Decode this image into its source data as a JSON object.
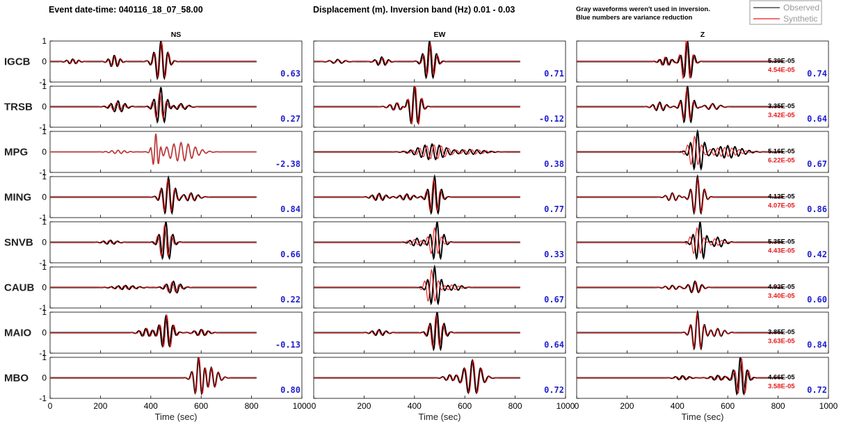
{
  "header": {
    "event": "Event date-time: 040116_18_07_58.00",
    "band": "Displacement (m).  Inversion band (Hz)  0.01 - 0.03",
    "note1": "Gray waveforms weren't used in inversion.",
    "note2": "Blue numbers are variance reduction"
  },
  "legend": {
    "observed": "Observed",
    "synthetic": "Synthetic",
    "placement": "top-right"
  },
  "chart_data": {
    "type": "line",
    "columns": [
      "NS",
      "EW",
      "Z"
    ],
    "stations": [
      "IGCB",
      "TRSB",
      "MPG",
      "MING",
      "SNVB",
      "CAUB",
      "MAIO",
      "MBO"
    ],
    "xlabel": "Time (sec)",
    "xlim": [
      0,
      1000
    ],
    "xticks": [
      "0",
      "200",
      "400",
      "600",
      "800",
      "1000"
    ],
    "ylim": [
      -1,
      1
    ],
    "yticks": [
      "-1",
      "0",
      "1"
    ],
    "grid": false,
    "colors": {
      "observed": "#000000",
      "synthetic": "#e41a1c",
      "unused": "#8c8c8c",
      "vr": "#1f1fcf",
      "amp_syn": "#e41a1c",
      "amp_obs": "#000000"
    },
    "variance_reduction": [
      [
        "0.63",
        "0.71",
        "0.74"
      ],
      [
        "0.27",
        "-0.12",
        "0.64"
      ],
      [
        "-2.38",
        "0.38",
        "0.67"
      ],
      [
        "0.84",
        "0.77",
        "0.86"
      ],
      [
        "0.66",
        "0.33",
        "0.42"
      ],
      [
        "0.22",
        "0.67",
        "0.60"
      ],
      [
        "-0.13",
        "0.64",
        "0.84"
      ],
      [
        "0.80",
        "0.72",
        "0.72"
      ]
    ],
    "max_amplitude_observed": [
      "5.39E-05",
      "3.35E-05",
      "5.16E-05",
      "4.12E-05",
      "5.35E-05",
      "4.92E-05",
      "3.85E-05",
      "4.66E-05"
    ],
    "max_amplitude_synthetic": [
      "4.54E-05",
      "3.42E-05",
      "6.22E-05",
      "4.07E-05",
      "4.43E-05",
      "3.40E-05",
      "3.63E-05",
      "3.58E-05"
    ],
    "unused_components": [
      [
        2,
        0
      ]
    ],
    "waveforms": [
      [
        {
          "packets": [
            [
              440,
              1.0,
              22,
              0.035,
              0
            ],
            [
              255,
              0.3,
              18,
              0.04,
              0
            ],
            [
              90,
              0.12,
              20,
              0.04,
              0
            ]
          ],
          "syn_amp": 0.95,
          "syn_shift": 3
        },
        {
          "packets": [
            [
              460,
              1.0,
              20,
              0.035,
              0
            ],
            [
              270,
              0.22,
              20,
              0.035,
              0
            ],
            [
              95,
              0.1,
              25,
              0.03,
              0
            ]
          ],
          "syn_amp": 0.85,
          "syn_shift": 4
        },
        {
          "packets": [
            [
              440,
              1.0,
              18,
              0.035,
              0
            ],
            [
              355,
              0.2,
              20,
              0.04,
              0
            ]
          ],
          "syn_amp": 1.1,
          "syn_shift": -4
        }
      ],
      [
        {
          "packets": [
            [
              440,
              0.95,
              20,
              0.035,
              0
            ],
            [
              270,
              0.28,
              25,
              0.035,
              0
            ],
            [
              520,
              0.15,
              25,
              0.03,
              0
            ]
          ],
          "syn_amp": 0.75,
          "syn_shift": -5
        },
        {
          "packets": [
            [
              400,
              1.0,
              20,
              0.035,
              0
            ],
            [
              330,
              0.18,
              25,
              0.035,
              0
            ]
          ],
          "syn_amp": 1.1,
          "syn_shift": 3
        },
        {
          "packets": [
            [
              440,
              1.0,
              18,
              0.035,
              0
            ],
            [
              330,
              0.22,
              22,
              0.035,
              0
            ],
            [
              540,
              0.15,
              25,
              0.03,
              0
            ]
          ],
          "syn_amp": 0.85,
          "syn_shift": -3
        }
      ],
      [
        {
          "packets": [
            [
              420,
              0.95,
              12,
              0.045,
              0
            ],
            [
              520,
              0.45,
              50,
              0.035,
              0
            ],
            [
              270,
              0.08,
              30,
              0.04,
              0
            ]
          ],
          "syn_amp": 1.0,
          "syn_shift": 0
        },
        {
          "packets": [
            [
              470,
              0.38,
              50,
              0.035,
              0
            ],
            [
              620,
              0.12,
              50,
              0.035,
              0
            ]
          ],
          "syn_amp": 0.9,
          "syn_shift": 8
        },
        {
          "packets": [
            [
              480,
              1.0,
              22,
              0.035,
              0
            ],
            [
              600,
              0.3,
              50,
              0.035,
              0
            ]
          ],
          "syn_amp": 0.75,
          "syn_shift": -12
        }
      ],
      [
        {
          "packets": [
            [
              470,
              0.95,
              22,
              0.035,
              0
            ],
            [
              560,
              0.2,
              25,
              0.035,
              0
            ]
          ],
          "syn_amp": 0.9,
          "syn_shift": -3
        },
        {
          "packets": [
            [
              480,
              1.0,
              20,
              0.035,
              0
            ],
            [
              260,
              0.18,
              25,
              0.035,
              0
            ],
            [
              370,
              0.15,
              25,
              0.035,
              0
            ]
          ],
          "syn_amp": 0.85,
          "syn_shift": -4
        },
        {
          "packets": [
            [
              480,
              1.0,
              20,
              0.035,
              0
            ],
            [
              380,
              0.2,
              20,
              0.035,
              0
            ]
          ],
          "syn_amp": 0.95,
          "syn_shift": 2
        }
      ],
      [
        {
          "packets": [
            [
              460,
              1.0,
              20,
              0.035,
              0
            ],
            [
              240,
              0.1,
              25,
              0.035,
              0
            ]
          ],
          "syn_amp": 0.85,
          "syn_shift": -5
        },
        {
          "packets": [
            [
              490,
              1.0,
              20,
              0.035,
              0
            ],
            [
              410,
              0.2,
              22,
              0.035,
              0
            ]
          ],
          "syn_amp": 0.7,
          "syn_shift": -10
        },
        {
          "packets": [
            [
              490,
              1.0,
              20,
              0.035,
              0
            ],
            [
              560,
              0.25,
              25,
              0.035,
              0
            ]
          ],
          "syn_amp": 0.7,
          "syn_shift": -12
        }
      ],
      [
        {
          "packets": [
            [
              490,
              0.3,
              25,
              0.035,
              0
            ],
            [
              300,
              0.1,
              40,
              0.035,
              0
            ]
          ],
          "syn_amp": 0.9,
          "syn_shift": -5
        },
        {
          "packets": [
            [
              480,
              1.0,
              20,
              0.035,
              0
            ],
            [
              560,
              0.15,
              25,
              0.035,
              0
            ]
          ],
          "syn_amp": 0.85,
          "syn_shift": -12
        },
        {
          "packets": [
            [
              470,
              0.3,
              22,
              0.035,
              0
            ],
            [
              380,
              0.1,
              25,
              0.035,
              0
            ]
          ],
          "syn_amp": 0.95,
          "syn_shift": 3
        }
      ],
      [
        {
          "packets": [
            [
              460,
              0.8,
              22,
              0.035,
              0
            ],
            [
              380,
              0.2,
              22,
              0.035,
              0
            ],
            [
              600,
              0.15,
              25,
              0.035,
              0
            ]
          ],
          "syn_amp": 1.05,
          "syn_shift": 4
        },
        {
          "packets": [
            [
              490,
              1.0,
              22,
              0.035,
              0
            ],
            [
              260,
              0.15,
              25,
              0.035,
              0
            ]
          ],
          "syn_amp": 0.85,
          "syn_shift": -4
        },
        {
          "packets": [
            [
              480,
              1.0,
              20,
              0.035,
              0
            ],
            [
              560,
              0.2,
              25,
              0.035,
              0
            ]
          ],
          "syn_amp": 0.95,
          "syn_shift": -2
        }
      ],
      [
        {
          "packets": [
            [
              590,
              1.0,
              18,
              0.035,
              0
            ],
            [
              640,
              0.5,
              25,
              0.035,
              0
            ]
          ],
          "syn_amp": 1.0,
          "syn_shift": 2
        },
        {
          "packets": [
            [
              630,
              0.85,
              30,
              0.03,
              0
            ],
            [
              540,
              0.15,
              20,
              0.035,
              0
            ]
          ],
          "syn_amp": 1.0,
          "syn_shift": 3
        },
        {
          "packets": [
            [
              650,
              1.0,
              20,
              0.035,
              0
            ],
            [
              420,
              0.1,
              25,
              0.035,
              0
            ],
            [
              560,
              0.12,
              25,
              0.035,
              0
            ]
          ],
          "syn_amp": 0.95,
          "syn_shift": 5
        }
      ]
    ]
  }
}
